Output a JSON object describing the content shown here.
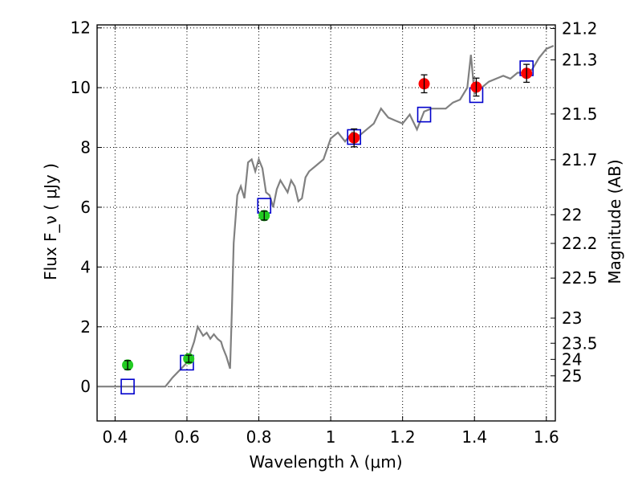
{
  "chart_data": {
    "type": "scatter",
    "xlabel": "Wavelength  λ (μm)",
    "ylabel_left": "Flux  F_ν  ( μJy )",
    "ylabel_right": "Magnitude (AB)",
    "xlim": [
      0.35,
      1.625
    ],
    "ylim": [
      -1.15,
      12.1
    ],
    "grid": true,
    "x_ticks": [
      0.4,
      0.6,
      0.8,
      1.0,
      1.2,
      1.4,
      1.6
    ],
    "x_tick_labels": [
      "0.4",
      "0.6",
      "0.8",
      "1",
      "1.2",
      "1.4",
      "1.6"
    ],
    "y_ticks": [
      0,
      2,
      4,
      6,
      8,
      10,
      12
    ],
    "y_tick_labels": [
      "0",
      "2",
      "4",
      "6",
      "8",
      "10",
      "12"
    ],
    "right_ticks": [
      {
        "label": "21.2",
        "flux": 11.98
      },
      {
        "label": "21.3",
        "flux": 10.93
      },
      {
        "label": "21.5",
        "flux": 9.12
      },
      {
        "label": "21.7",
        "flux": 7.59
      },
      {
        "label": "22",
        "flux": 5.75
      },
      {
        "label": "22.2",
        "flux": 4.79
      },
      {
        "label": "22.5",
        "flux": 3.63
      },
      {
        "label": "23",
        "flux": 2.29
      },
      {
        "label": "23.5",
        "flux": 1.45
      },
      {
        "label": "24",
        "flux": 0.91
      },
      {
        "label": "25",
        "flux": 0.36
      }
    ],
    "series": [
      {
        "kind": "line",
        "color": "#808080",
        "points": [
          [
            0.35,
            0.0
          ],
          [
            0.54,
            0.0
          ],
          [
            0.56,
            0.3
          ],
          [
            0.58,
            0.55
          ],
          [
            0.6,
            0.8
          ],
          [
            0.62,
            1.5
          ],
          [
            0.63,
            2.0
          ],
          [
            0.645,
            1.7
          ],
          [
            0.655,
            1.8
          ],
          [
            0.665,
            1.6
          ],
          [
            0.675,
            1.75
          ],
          [
            0.685,
            1.6
          ],
          [
            0.695,
            1.5
          ],
          [
            0.7,
            1.3
          ],
          [
            0.71,
            1.0
          ],
          [
            0.72,
            0.6
          ],
          [
            0.725,
            2.5
          ],
          [
            0.73,
            4.8
          ],
          [
            0.74,
            6.4
          ],
          [
            0.75,
            6.7
          ],
          [
            0.76,
            6.3
          ],
          [
            0.77,
            7.5
          ],
          [
            0.78,
            7.6
          ],
          [
            0.79,
            7.2
          ],
          [
            0.8,
            7.6
          ],
          [
            0.81,
            7.3
          ],
          [
            0.82,
            6.5
          ],
          [
            0.83,
            6.4
          ],
          [
            0.84,
            6.0
          ],
          [
            0.85,
            6.6
          ],
          [
            0.86,
            6.9
          ],
          [
            0.87,
            6.7
          ],
          [
            0.88,
            6.5
          ],
          [
            0.89,
            6.9
          ],
          [
            0.9,
            6.7
          ],
          [
            0.91,
            6.2
          ],
          [
            0.92,
            6.3
          ],
          [
            0.93,
            7.0
          ],
          [
            0.94,
            7.2
          ],
          [
            0.96,
            7.4
          ],
          [
            0.98,
            7.6
          ],
          [
            1.0,
            8.3
          ],
          [
            1.02,
            8.5
          ],
          [
            1.04,
            8.2
          ],
          [
            1.06,
            8.5
          ],
          [
            1.08,
            8.4
          ],
          [
            1.1,
            8.6
          ],
          [
            1.12,
            8.8
          ],
          [
            1.14,
            9.3
          ],
          [
            1.16,
            9.0
          ],
          [
            1.18,
            8.9
          ],
          [
            1.2,
            8.8
          ],
          [
            1.22,
            9.1
          ],
          [
            1.24,
            8.6
          ],
          [
            1.26,
            9.2
          ],
          [
            1.28,
            9.3
          ],
          [
            1.3,
            9.3
          ],
          [
            1.32,
            9.3
          ],
          [
            1.34,
            9.5
          ],
          [
            1.36,
            9.6
          ],
          [
            1.38,
            10.0
          ],
          [
            1.39,
            11.1
          ],
          [
            1.4,
            9.8
          ],
          [
            1.42,
            10.0
          ],
          [
            1.44,
            10.2
          ],
          [
            1.46,
            10.3
          ],
          [
            1.48,
            10.4
          ],
          [
            1.5,
            10.3
          ],
          [
            1.52,
            10.5
          ],
          [
            1.54,
            10.5
          ],
          [
            1.56,
            10.6
          ],
          [
            1.58,
            11.0
          ],
          [
            1.6,
            11.3
          ],
          [
            1.62,
            11.4
          ]
        ]
      },
      {
        "kind": "open-square",
        "color": "#0000cc",
        "points": [
          [
            0.435,
            0.0
          ],
          [
            0.6,
            0.8
          ],
          [
            0.815,
            6.05
          ],
          [
            1.065,
            8.35
          ],
          [
            1.26,
            9.1
          ],
          [
            1.405,
            9.75
          ],
          [
            1.545,
            10.65
          ]
        ]
      },
      {
        "kind": "filled-circle",
        "color": "#22cc22",
        "points": [
          [
            0.435,
            0.72
          ],
          [
            0.605,
            0.93
          ],
          [
            0.815,
            5.72
          ]
        ],
        "errors": [
          0.15,
          0.12,
          0.15
        ]
      },
      {
        "kind": "filled-circle",
        "color": "#ff0000",
        "points": [
          [
            1.065,
            8.32
          ],
          [
            1.26,
            10.13
          ],
          [
            1.405,
            10.02
          ],
          [
            1.545,
            10.48
          ]
        ],
        "errors": [
          0.3,
          0.3,
          0.3,
          0.3
        ]
      }
    ]
  }
}
